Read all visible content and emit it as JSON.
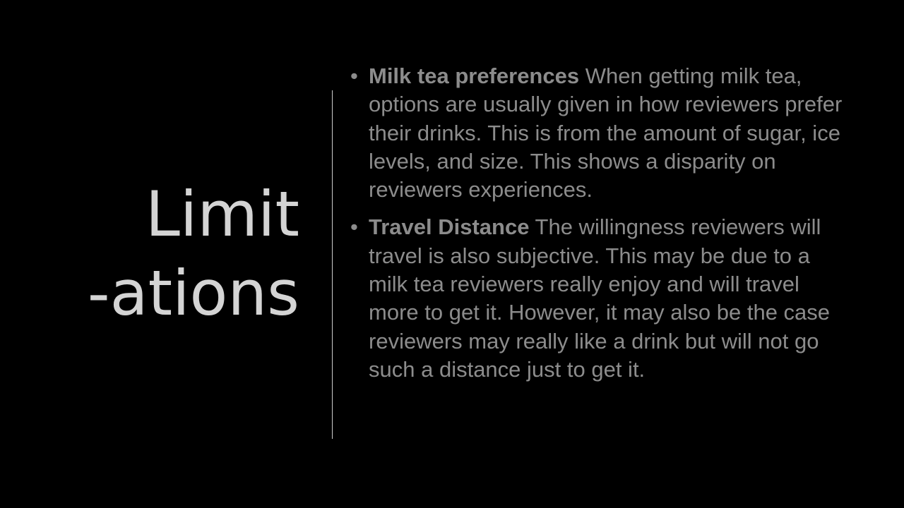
{
  "title": {
    "line1": "Limit",
    "line2": "-ations"
  },
  "bullets": [
    {
      "heading": "Milk tea preferences",
      "text": "When getting milk tea, options are usually given in how reviewers prefer their drinks. This is from the amount of sugar, ice levels, and size. This shows a disparity on reviewers experiences."
    },
    {
      "heading": "Travel Distance",
      "text": "The willingness reviewers will travel is also subjective. This may be due to a milk tea reviewers really enjoy and will travel more to get it. However, it may also be the case reviewers may really like a drink but will not go such a distance just to get it."
    }
  ],
  "colors": {
    "background": "#000000",
    "title": "#d4d4d4",
    "body_text": "#8c8c8c",
    "divider": "#cfcfcf"
  }
}
